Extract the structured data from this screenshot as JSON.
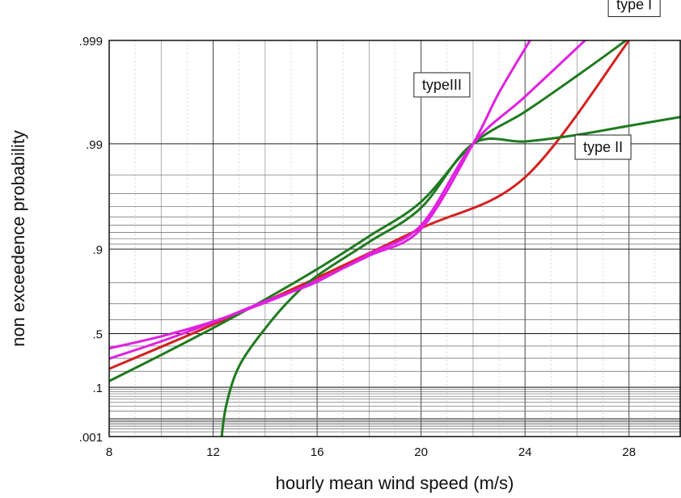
{
  "chart_data": {
    "type": "line",
    "title": "",
    "xlabel": "hourly mean wind speed (m/s)",
    "ylabel": "non exceedence probability",
    "xlim": [
      8,
      30
    ],
    "x_ticks": [
      8,
      12,
      16,
      20,
      24,
      28
    ],
    "x_tick_labels": [
      "8",
      "12",
      "16",
      "20",
      "24",
      "28"
    ],
    "y_scale": "gumbel (double-exponential probability paper)",
    "y_ticks": [
      0.001,
      0.1,
      0.5,
      0.9,
      0.99,
      0.999
    ],
    "y_tick_labels": [
      ".001",
      ".1",
      ".5",
      ".9",
      ".99",
      ".999"
    ],
    "grid": true,
    "legend": "none",
    "annotations": [
      {
        "text": "type I",
        "x": 28.2,
        "y": 0.9995
      },
      {
        "text": "typeIII",
        "x": 20.8,
        "y": 0.997
      },
      {
        "text": "type II",
        "x": 27.0,
        "y": 0.988
      }
    ],
    "series": [
      {
        "color": "#d42020",
        "x": [
          8,
          12,
          16,
          20,
          24,
          28
        ],
        "y": [
          0.218,
          0.567,
          0.819,
          0.936,
          0.979,
          0.999
        ]
      },
      {
        "color": "#1f7a1f",
        "x": [
          8,
          10,
          12,
          14,
          16,
          18,
          20,
          22,
          24,
          26,
          28,
          29,
          30
        ],
        "y": [
          0.135,
          0.327,
          0.542,
          0.723,
          0.848,
          0.924,
          0.964,
          0.99,
          0.9951,
          0.9978,
          0.99905,
          0.9994,
          0.9996
        ]
      },
      {
        "color": "#1f7a1f",
        "x": [
          12.3,
          12.5,
          13,
          14,
          15,
          16,
          18,
          20,
          22,
          24,
          26,
          28,
          30
        ],
        "y": [
          0.0003,
          0.031,
          0.238,
          0.538,
          0.728,
          0.826,
          0.914,
          0.959,
          0.99,
          0.9905,
          0.9918,
          0.9933,
          0.9945
        ]
      },
      {
        "color": "#e020e0",
        "x": [
          8,
          10,
          12,
          14,
          15,
          16,
          18,
          20,
          22,
          24,
          26.5
        ],
        "y": [
          0.297,
          0.438,
          0.583,
          0.714,
          0.76,
          0.804,
          0.889,
          0.94,
          0.99,
          0.9965,
          0.9991
        ]
      },
      {
        "color": "#e020e0",
        "x": [
          8,
          10,
          12,
          14,
          15,
          16,
          18,
          20,
          22,
          23,
          24.3
        ],
        "y": [
          0.381,
          0.478,
          0.589,
          0.706,
          0.76,
          0.809,
          0.885,
          0.935,
          0.99,
          0.9968,
          0.9991
        ]
      }
    ]
  }
}
